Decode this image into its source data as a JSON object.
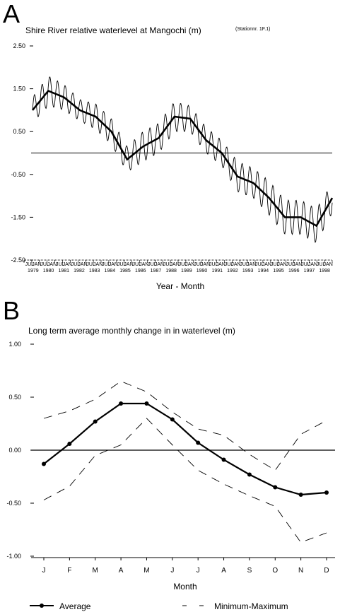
{
  "chart_data": [
    {
      "type": "line",
      "panel": "A",
      "title": "Shire River relative waterlevel at Mangochi (m)",
      "title_note": "(Stationnr. 1F.1)",
      "xlabel": "Year - Month",
      "ylabel": "",
      "y_ticks": [
        "2.50",
        "1.50",
        "0.50",
        "-0.50",
        "-1.50",
        "-2.50"
      ],
      "ylim": [
        -2.5,
        2.5
      ],
      "x_year_labels": [
        "1979",
        "1980",
        "1981",
        "1982",
        "1983",
        "1984",
        "1985",
        "1986",
        "1987",
        "1988",
        "1989",
        "1990",
        "1991",
        "1992",
        "1993",
        "1994",
        "1995",
        "1996",
        "1997",
        "1998"
      ],
      "x_month_labels": [
        "JUL",
        "JAN"
      ],
      "reference_line_y": 0,
      "series": [
        {
          "style": "thick",
          "x": [
            1979.5,
            1980.5,
            1981.5,
            1982.5,
            1983.5,
            1984.5,
            1985.5,
            1986.5,
            1987.5,
            1988.5,
            1989.5,
            1990.5,
            1991.5,
            1992.5,
            1993.5,
            1994.5,
            1995.5,
            1996.5,
            1997.5,
            1998.5
          ],
          "values": [
            1.0,
            1.45,
            1.3,
            1.0,
            0.85,
            0.5,
            -0.15,
            0.15,
            0.35,
            0.85,
            0.8,
            0.3,
            0.0,
            -0.55,
            -0.7,
            -1.05,
            -1.5,
            -1.5,
            -1.7,
            -1.05
          ]
        },
        {
          "style": "thin",
          "type": "monthly oscillation",
          "amplitude": [
            0.3,
            0.35,
            0.3,
            0.25,
            0.3,
            0.3,
            0.3,
            0.35,
            0.35,
            0.35,
            0.3,
            0.3,
            0.3,
            0.35,
            0.35,
            0.4,
            0.4,
            0.4,
            0.4,
            0.35
          ]
        }
      ]
    },
    {
      "type": "line",
      "panel": "B",
      "title": "Long term average monthly change in in waterlevel (m)",
      "xlabel": "Month",
      "ylabel": "",
      "categories": [
        "J",
        "F",
        "M",
        "A",
        "M",
        "J",
        "J",
        "A",
        "S",
        "O",
        "N",
        "D"
      ],
      "y_ticks": [
        "1.00",
        "0.50",
        "0.00",
        "-0.50",
        "-1.00"
      ],
      "ylim": [
        -1.0,
        1.0
      ],
      "reference_line_y": 0,
      "series": [
        {
          "name": "Average",
          "style": "solid-dots",
          "values": [
            -0.13,
            0.06,
            0.27,
            0.44,
            0.44,
            0.29,
            0.07,
            -0.09,
            -0.23,
            -0.35,
            -0.42,
            -0.4
          ]
        },
        {
          "name": "Minimum-Maximum",
          "style": "dashed-max",
          "values": [
            0.3,
            0.37,
            0.48,
            0.65,
            0.55,
            0.36,
            0.2,
            0.14,
            -0.04,
            -0.19,
            0.15,
            0.28
          ]
        },
        {
          "name": "Minimum-Maximum",
          "style": "dashed-min",
          "values": [
            -0.47,
            -0.34,
            -0.05,
            0.05,
            0.3,
            0.05,
            -0.19,
            -0.32,
            -0.43,
            -0.53,
            -0.87,
            -0.78
          ]
        }
      ],
      "legend": [
        "Average",
        "Minimum-Maximum"
      ]
    }
  ]
}
